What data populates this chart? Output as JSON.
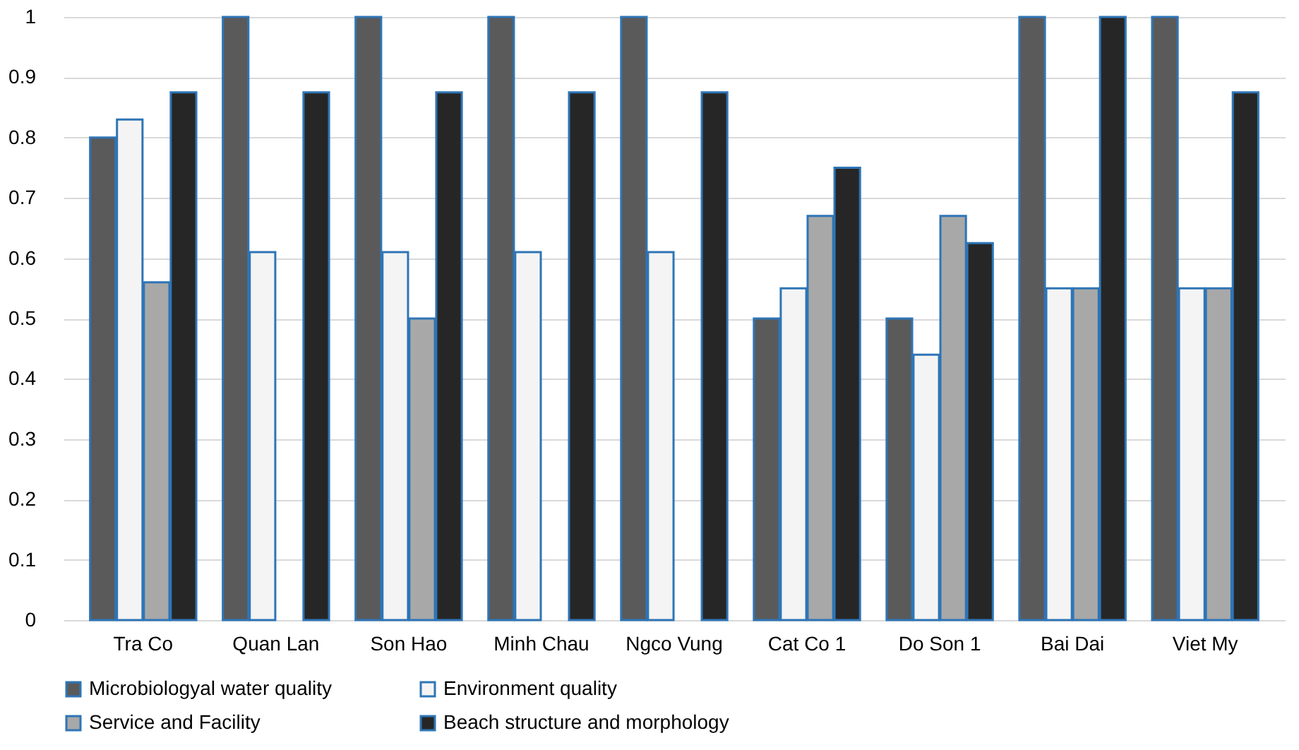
{
  "chart_data": {
    "type": "bar",
    "categories": [
      "Tra Co",
      "Quan Lan",
      "Son Hao",
      "Minh Chau",
      "Ngco Vung",
      "Cat Co 1",
      "Do Son 1",
      "Bai Dai",
      "Viet My"
    ],
    "series": [
      {
        "name": "Microbiologyal water quality",
        "color": "#5a5a5a",
        "values": [
          0.8,
          1,
          1,
          1,
          1,
          0.5,
          0.5,
          1,
          1
        ]
      },
      {
        "name": "Environment quality",
        "color": "#f4f4f4",
        "values": [
          0.83,
          0.61,
          0.61,
          0.61,
          0.61,
          0.55,
          0.44,
          0.55,
          0.55
        ]
      },
      {
        "name": "Service and Facility",
        "color": "#a8a8a8",
        "values": [
          0.56,
          0,
          0.5,
          0,
          0,
          0.67,
          0.67,
          0.55,
          0.55
        ]
      },
      {
        "name": "Beach structure and morphology",
        "color": "#262626",
        "values": [
          0.875,
          0.875,
          0.875,
          0.875,
          0.875,
          0.75,
          0.625,
          1,
          0.875
        ]
      }
    ],
    "ylim": [
      0,
      1
    ],
    "yticks": [
      0,
      0.1,
      0.2,
      0.3,
      0.4,
      0.5,
      0.6,
      0.7,
      0.8,
      0.9,
      1
    ],
    "grid": "y",
    "legend": "bottom"
  }
}
